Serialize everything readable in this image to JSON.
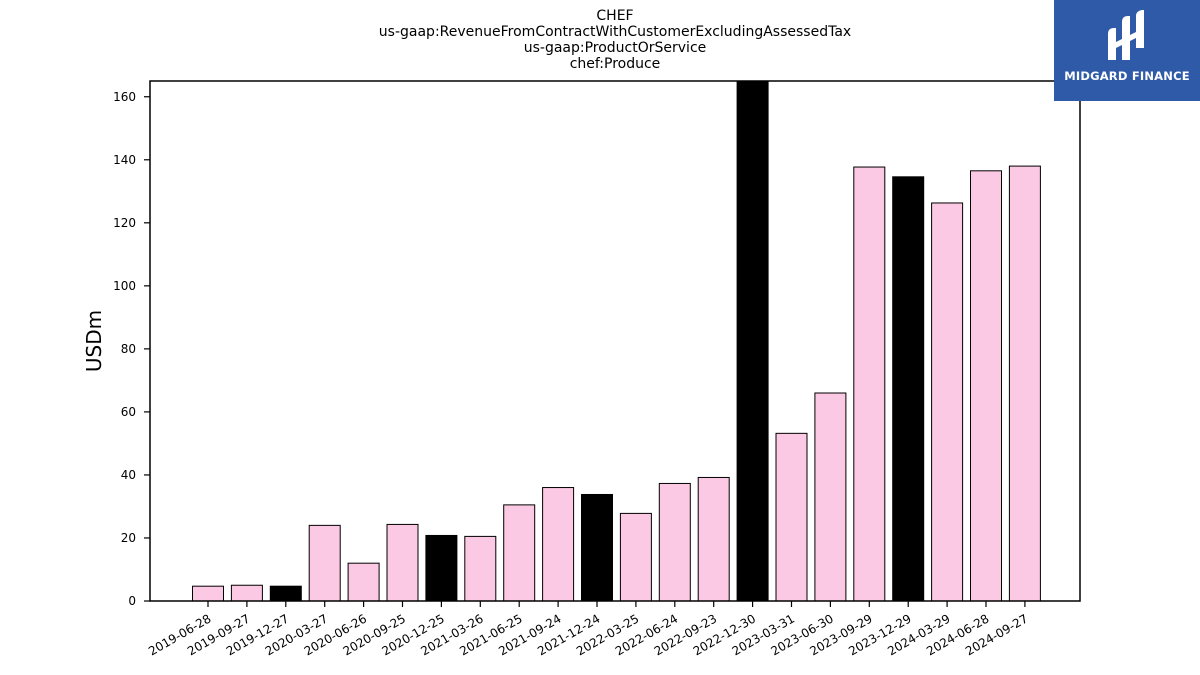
{
  "chart_data": {
    "type": "bar",
    "title_lines": [
      "CHEF",
      "us-gaap:RevenueFromContractWithCustomerExcludingAssessedTax",
      "us-gaap:ProductOrService",
      "chef:Produce"
    ],
    "xlabel": "",
    "ylabel": "USDm",
    "ylim": [
      0,
      165
    ],
    "yticks": [
      0,
      20,
      40,
      60,
      80,
      100,
      120,
      140,
      160
    ],
    "grid": false,
    "categories": [
      "2019-06-28",
      "2019-09-27",
      "2019-12-27",
      "2020-03-27",
      "2020-06-26",
      "2020-09-25",
      "2020-12-25",
      "2021-03-26",
      "2021-06-25",
      "2021-09-24",
      "2021-12-24",
      "2022-03-25",
      "2022-06-24",
      "2022-09-23",
      "2022-12-30",
      "2023-03-31",
      "2023-06-30",
      "2023-09-29",
      "2023-12-29",
      "2024-03-29",
      "2024-06-28",
      "2024-09-27"
    ],
    "values": [
      4.7,
      5.0,
      4.7,
      24.0,
      12.0,
      24.3,
      20.8,
      20.5,
      30.5,
      36.0,
      33.8,
      27.8,
      37.3,
      39.2,
      165.0,
      53.2,
      66.0,
      137.7,
      134.6,
      126.3,
      136.5,
      138.0
    ],
    "highlight": [
      false,
      false,
      true,
      false,
      false,
      false,
      true,
      false,
      false,
      false,
      true,
      false,
      false,
      false,
      true,
      false,
      false,
      false,
      true,
      false,
      false,
      false
    ],
    "colors": {
      "normal": "#fbc9e3",
      "highlight": "#000000",
      "edge": "#000000"
    }
  },
  "logo": {
    "text": "MIDGARD FINANCE",
    "background": "#2f5aa8",
    "icon": "midgard-logo-icon"
  }
}
